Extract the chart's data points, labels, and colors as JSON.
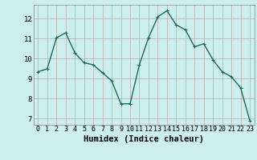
{
  "x": [
    0,
    1,
    2,
    3,
    4,
    5,
    6,
    7,
    8,
    9,
    10,
    11,
    12,
    13,
    14,
    15,
    16,
    17,
    18,
    19,
    20,
    21,
    22,
    23
  ],
  "y": [
    9.35,
    9.5,
    11.05,
    11.3,
    10.3,
    9.8,
    9.7,
    9.3,
    8.9,
    7.75,
    7.75,
    9.7,
    11.05,
    12.1,
    12.4,
    11.7,
    11.45,
    10.6,
    10.75,
    9.95,
    9.35,
    9.1,
    8.55,
    6.9
  ],
  "line_color": "#1a6b5a",
  "marker": "+",
  "bg_color": "#cceeed",
  "grid_color_major": "#c0a8a8",
  "xlabel": "Humidex (Indice chaleur)",
  "ylim": [
    6.7,
    12.7
  ],
  "xlim": [
    -0.5,
    23.5
  ],
  "yticks": [
    7,
    8,
    9,
    10,
    11,
    12
  ],
  "xticks": [
    0,
    1,
    2,
    3,
    4,
    5,
    6,
    7,
    8,
    9,
    10,
    11,
    12,
    13,
    14,
    15,
    16,
    17,
    18,
    19,
    20,
    21,
    22,
    23
  ],
  "tick_fontsize": 6.0,
  "xlabel_fontsize": 7.5,
  "linewidth": 1.0,
  "markersize": 3.5
}
